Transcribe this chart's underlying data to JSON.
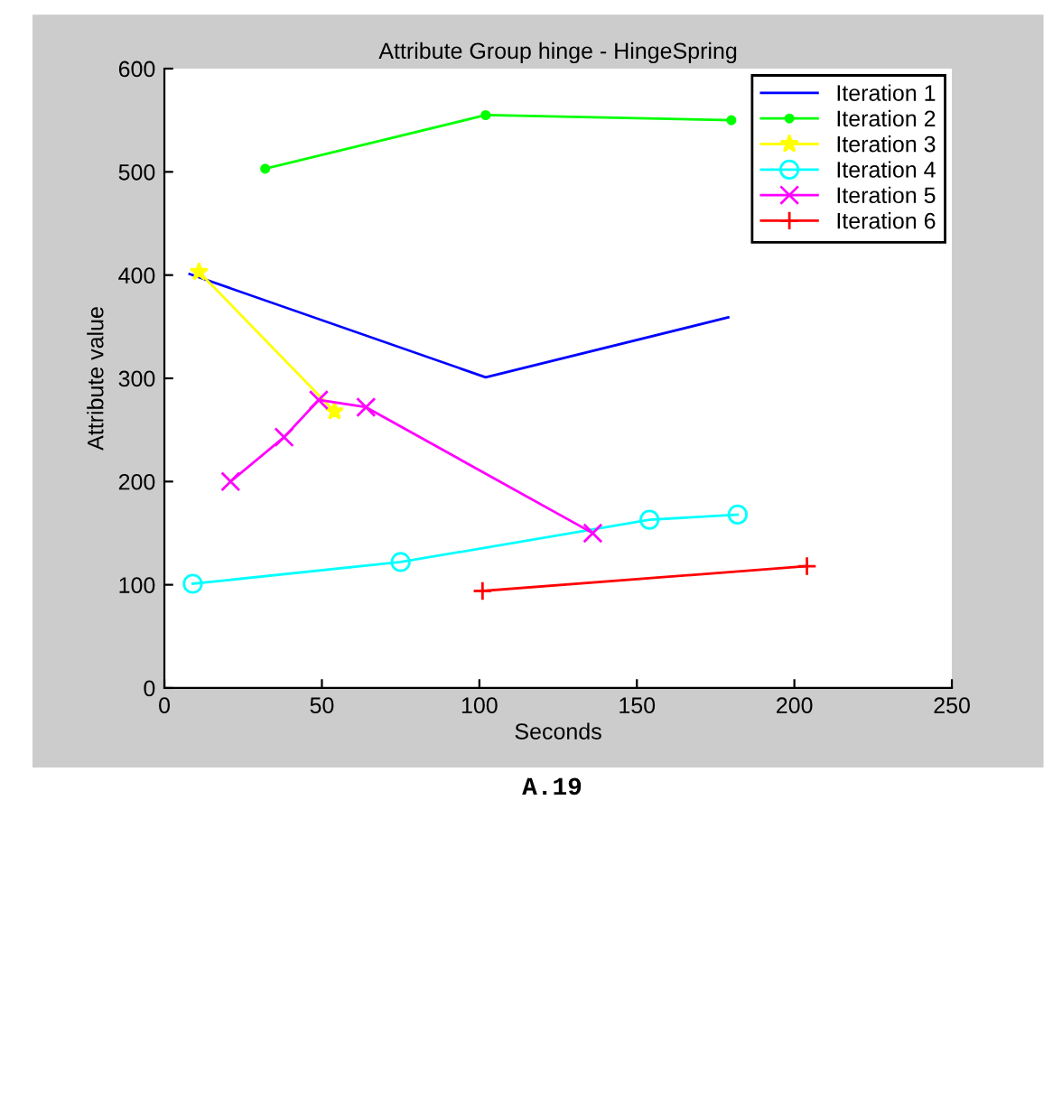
{
  "chart_data": {
    "type": "line",
    "title": "Attribute Group hinge - HingeSpring",
    "xlabel": "Seconds",
    "ylabel": "Attribute value",
    "xlim": [
      0,
      250
    ],
    "xticks": [
      0,
      50,
      100,
      150,
      200,
      250
    ],
    "ylim": [
      0,
      600
    ],
    "yticks": [
      0,
      100,
      200,
      300,
      400,
      500,
      600
    ],
    "grid": false,
    "legend": "top right",
    "annotations": [
      "A.19"
    ],
    "series": [
      {
        "name": "Iteration 1",
        "color": "#0000ff",
        "marker": "none",
        "x": [
          8,
          102,
          179
        ],
        "values": [
          401,
          301,
          359
        ]
      },
      {
        "name": "Iteration 2",
        "color": "#00ff00",
        "marker": "point",
        "x": [
          32,
          102,
          180
        ],
        "values": [
          503,
          555,
          550
        ]
      },
      {
        "name": "Iteration 3",
        "color": "#ffff00",
        "marker": "star",
        "x": [
          11,
          54
        ],
        "values": [
          403,
          268
        ]
      },
      {
        "name": "Iteration 4",
        "color": "#00ffff",
        "marker": "circle",
        "x": [
          9,
          75,
          154,
          182
        ],
        "values": [
          101,
          122,
          163,
          168
        ]
      },
      {
        "name": "Iteration 5",
        "color": "#ff00ff",
        "marker": "cross",
        "x": [
          21,
          38,
          49,
          64,
          136
        ],
        "values": [
          200,
          243,
          279,
          272,
          150
        ]
      },
      {
        "name": "Iteration 6",
        "color": "#ff0000",
        "marker": "plus",
        "x": [
          101,
          204
        ],
        "values": [
          94,
          118
        ]
      }
    ]
  }
}
